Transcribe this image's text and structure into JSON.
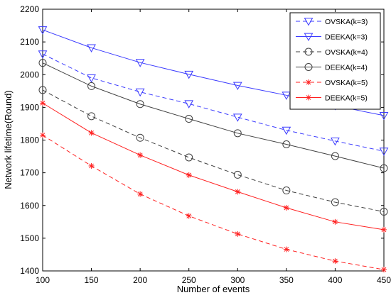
{
  "chart_data": {
    "type": "line",
    "title": "",
    "xlabel": "Number of events",
    "ylabel": "Network lifetime(Round)",
    "xlim": [
      100,
      450
    ],
    "ylim": [
      1400,
      2200
    ],
    "xticks": [
      "100",
      "150",
      "200",
      "250",
      "300",
      "350",
      "400",
      "450"
    ],
    "yticks": [
      "1400",
      "1500",
      "1600",
      "1700",
      "1800",
      "1900",
      "2000",
      "2100",
      "2200"
    ],
    "x": [
      100,
      150,
      200,
      250,
      300,
      350,
      400,
      450
    ],
    "grid": false,
    "legend_position": "top-right",
    "series": [
      {
        "name": "OVSKA(k=3)",
        "color": "#3b3bff",
        "dash": "dashed",
        "marker": "triangle-down",
        "values": [
          2063,
          1990,
          1947,
          1911,
          1870,
          1830,
          1797,
          1766
        ]
      },
      {
        "name": "DEEKA(k=3)",
        "color": "#3b3bff",
        "dash": "solid",
        "marker": "triangle-down",
        "values": [
          2137,
          2082,
          2037,
          2001,
          1967,
          1937,
          1905,
          1875
        ]
      },
      {
        "name": "OVSKA(k=4)",
        "color": "#404040",
        "dash": "dashed",
        "marker": "circle",
        "values": [
          1953,
          1873,
          1807,
          1747,
          1694,
          1646,
          1610,
          1581
        ]
      },
      {
        "name": "DEEKA(k=4)",
        "color": "#404040",
        "dash": "solid",
        "marker": "circle",
        "values": [
          2036,
          1965,
          1910,
          1865,
          1821,
          1787,
          1751,
          1714
        ]
      },
      {
        "name": "OVSKA(k=5)",
        "color": "#ff2020",
        "dash": "dashed",
        "marker": "asterisk",
        "values": [
          1815,
          1721,
          1635,
          1568,
          1513,
          1466,
          1430,
          1404
        ]
      },
      {
        "name": "DEEKA(k=5)",
        "color": "#ff2020",
        "dash": "solid",
        "marker": "asterisk",
        "values": [
          1913,
          1822,
          1754,
          1693,
          1642,
          1593,
          1550,
          1526
        ]
      }
    ]
  }
}
